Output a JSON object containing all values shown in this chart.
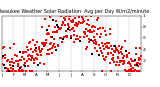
{
  "title": "Milwaukee Weather Solar Radiation  Avg per Day W/m2/minute",
  "title_fontsize": 3.5,
  "background_color": "#ffffff",
  "plot_bg_color": "#ffffff",
  "grid_color": "#999999",
  "dot_color_red": "#ff0000",
  "dot_color_black": "#000000",
  "ylim": [
    0,
    1.0
  ],
  "xlim": [
    0,
    365
  ],
  "ylabel_fontsize": 3.0,
  "xlabel_fontsize": 2.8,
  "yticks": [
    0.2,
    0.4,
    0.6,
    0.8,
    1.0
  ],
  "ytick_labels": [
    ".2",
    ".4",
    ".6",
    ".8",
    "1"
  ],
  "month_ticks": [
    0,
    31,
    59,
    90,
    120,
    151,
    181,
    212,
    243,
    273,
    304,
    334,
    365
  ],
  "month_labels": [
    "J",
    "F",
    "M",
    "A",
    "M",
    "J",
    "J",
    "A",
    "S",
    "O",
    "N",
    "D",
    ""
  ],
  "seed": 42,
  "n_points": 365
}
